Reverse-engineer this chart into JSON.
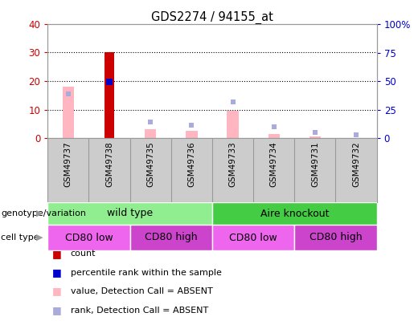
{
  "title": "GDS2274 / 94155_at",
  "samples": [
    "GSM49737",
    "GSM49738",
    "GSM49735",
    "GSM49736",
    "GSM49733",
    "GSM49734",
    "GSM49731",
    "GSM49732"
  ],
  "count_values": [
    null,
    30,
    null,
    null,
    null,
    null,
    null,
    null
  ],
  "count_color": "#CC0000",
  "percentile_rank_values": [
    null,
    49,
    null,
    null,
    null,
    null,
    null,
    null
  ],
  "percentile_rank_color": "#0000CC",
  "absent_value_values": [
    18,
    null,
    3,
    2.5,
    9.5,
    1.5,
    0.5,
    null
  ],
  "absent_value_color": "#FFB6C1",
  "absent_rank_values": [
    39,
    null,
    14,
    11,
    32,
    10,
    5,
    2.5
  ],
  "absent_rank_color": "#AAAADD",
  "ylim_left": [
    0,
    40
  ],
  "ylim_right": [
    0,
    100
  ],
  "yticks_left": [
    0,
    10,
    20,
    30,
    40
  ],
  "yticks_right": [
    0,
    25,
    50,
    75,
    100
  ],
  "yticklabels_right": [
    "0",
    "25",
    "50",
    "75",
    "100%"
  ],
  "grid_yticks": [
    10,
    20,
    30
  ],
  "xlabel_color": "#CC0000",
  "ylabel_right_color": "#0000CC",
  "genotype_groups": [
    {
      "label": "wild type",
      "start": 0,
      "end": 3,
      "color": "#90EE90"
    },
    {
      "label": "Aire knockout",
      "start": 4,
      "end": 7,
      "color": "#44CC44"
    }
  ],
  "cell_type_groups": [
    {
      "label": "CD80 low",
      "start": 0,
      "end": 1,
      "color": "#EE66EE"
    },
    {
      "label": "CD80 high",
      "start": 2,
      "end": 3,
      "color": "#CC44CC"
    },
    {
      "label": "CD80 low",
      "start": 4,
      "end": 5,
      "color": "#EE66EE"
    },
    {
      "label": "CD80 high",
      "start": 6,
      "end": 7,
      "color": "#CC44CC"
    }
  ],
  "legend_items": [
    {
      "label": "count",
      "color": "#CC0000"
    },
    {
      "label": "percentile rank within the sample",
      "color": "#0000CC"
    },
    {
      "label": "value, Detection Call = ABSENT",
      "color": "#FFB6C1"
    },
    {
      "label": "rank, Detection Call = ABSENT",
      "color": "#AAAADD"
    }
  ],
  "left_label_genotype": "genotype/variation",
  "left_label_cell": "cell type",
  "xticklabel_bg": "#CCCCCC",
  "spine_color": "#999999",
  "plot_bg": "#FFFFFF",
  "fig_bg": "#FFFFFF"
}
